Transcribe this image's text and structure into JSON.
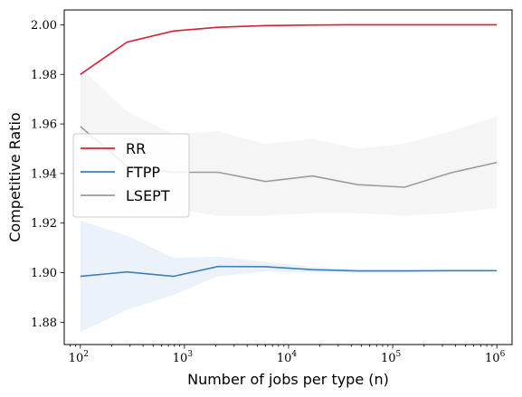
{
  "chart_data": {
    "type": "line",
    "title": "",
    "xlabel": "Number of jobs per type (n)",
    "ylabel": "Competitive Ratio",
    "x_scale": "log",
    "xlim": [
      70,
      1400000
    ],
    "ylim": [
      1.871,
      2.006
    ],
    "x_ticks": [
      {
        "value": 100,
        "base": "10",
        "exp": "2"
      },
      {
        "value": 1000,
        "base": "10",
        "exp": "3"
      },
      {
        "value": 10000,
        "base": "10",
        "exp": "4"
      },
      {
        "value": 100000,
        "base": "10",
        "exp": "5"
      },
      {
        "value": 1000000,
        "base": "10",
        "exp": "6"
      }
    ],
    "y_ticks": [
      {
        "value": 1.88,
        "label": "1.88"
      },
      {
        "value": 1.9,
        "label": "1.90"
      },
      {
        "value": 1.92,
        "label": "1.92"
      },
      {
        "value": 1.94,
        "label": "1.94"
      },
      {
        "value": 1.96,
        "label": "1.96"
      },
      {
        "value": 1.98,
        "label": "1.98"
      },
      {
        "value": 2.0,
        "label": "2.00"
      }
    ],
    "grid": false,
    "legend_position": "center-left",
    "x": [
      100,
      280,
      780,
      2100,
      6000,
      17000,
      46000,
      130000,
      360000,
      1000000
    ],
    "series": [
      {
        "name": "RR",
        "color": "#d62034",
        "values": [
          1.98,
          1.993,
          1.9975,
          1.999,
          1.9997,
          1.9999,
          2.0,
          2.0,
          2.0,
          2.0
        ],
        "lower": [
          1.98,
          1.993,
          1.9975,
          1.999,
          1.9997,
          1.9999,
          2.0,
          2.0,
          2.0,
          2.0
        ],
        "upper": [
          1.98,
          1.993,
          1.9975,
          1.999,
          1.9997,
          1.9999,
          2.0,
          2.0,
          2.0,
          2.0
        ]
      },
      {
        "name": "FTPP",
        "color": "#3a7fc0",
        "values": [
          1.8985,
          1.9003,
          1.8985,
          1.9025,
          1.9024,
          1.9012,
          1.9007,
          1.9007,
          1.9008,
          1.9008
        ],
        "lower": [
          1.876,
          1.885,
          1.891,
          1.8985,
          1.9005,
          1.9,
          1.9,
          1.9002,
          1.9004,
          1.9005
        ],
        "upper": [
          1.921,
          1.915,
          1.906,
          1.9065,
          1.9043,
          1.9024,
          1.9014,
          1.9012,
          1.9012,
          1.9011
        ]
      },
      {
        "name": "LSEPT",
        "color": "#9c9c9c",
        "values": [
          1.959,
          1.943,
          1.9405,
          1.9405,
          1.9368,
          1.939,
          1.9355,
          1.9345,
          1.9403,
          1.9445
        ],
        "lower": [
          1.935,
          1.927,
          1.926,
          1.923,
          1.923,
          1.924,
          1.924,
          1.923,
          1.924,
          1.926
        ],
        "upper": [
          1.983,
          1.965,
          1.956,
          1.957,
          1.952,
          1.954,
          1.95,
          1.952,
          1.957,
          1.963
        ]
      }
    ]
  }
}
